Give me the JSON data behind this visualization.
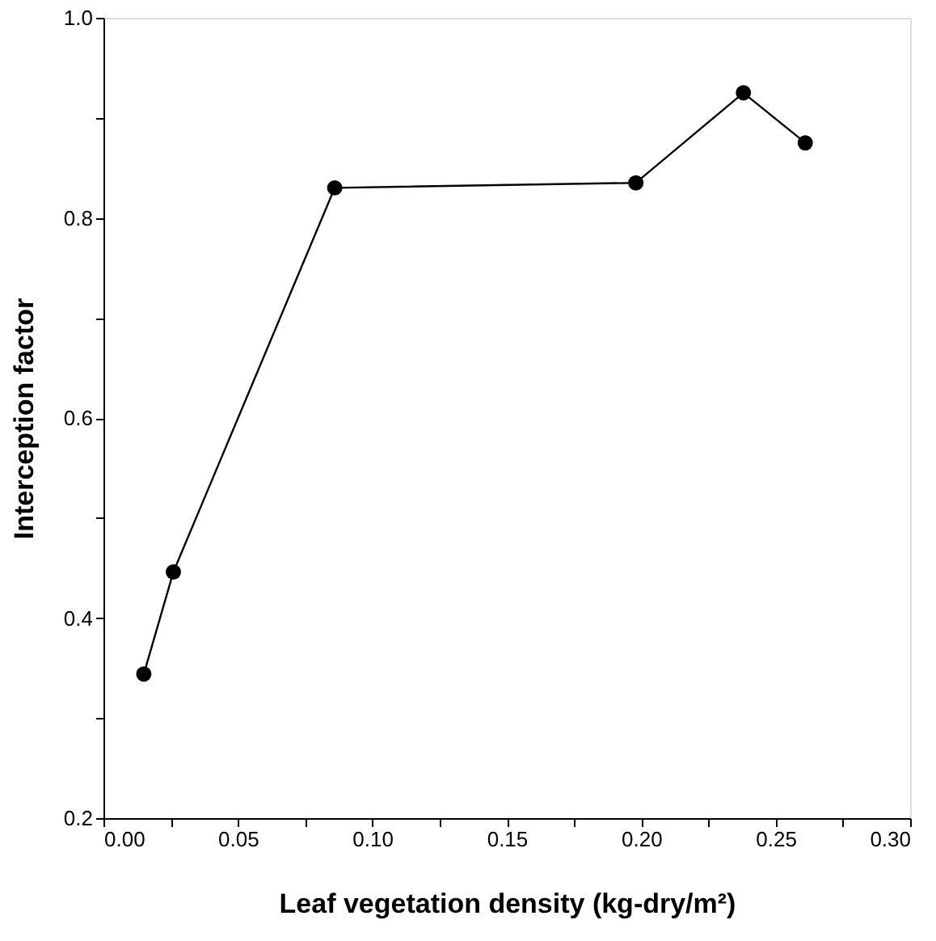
{
  "chart_data": {
    "type": "line",
    "xlabel": "Leaf vegetation density (kg-dry/m²)",
    "ylabel": "Interception factor",
    "x": [
      0.015,
      0.026,
      0.086,
      0.198,
      0.238,
      0.261
    ],
    "series": [
      {
        "color": "#000000",
        "values": [
          0.344,
          0.446,
          0.83,
          0.835,
          0.925,
          0.875
        ]
      }
    ],
    "xlim": [
      0.0,
      0.3
    ],
    "ylim": [
      0.2,
      1.0
    ],
    "xticks": [
      {
        "value": 0.0,
        "label": "0.00"
      },
      {
        "value": 0.025,
        "label": null
      },
      {
        "value": 0.05,
        "label": "0.05"
      },
      {
        "value": 0.075,
        "label": null
      },
      {
        "value": 0.1,
        "label": "0.10"
      },
      {
        "value": 0.125,
        "label": null
      },
      {
        "value": 0.15,
        "label": "0.15"
      },
      {
        "value": 0.175,
        "label": null
      },
      {
        "value": 0.2,
        "label": "0.20"
      },
      {
        "value": 0.225,
        "label": null
      },
      {
        "value": 0.25,
        "label": "0.25"
      },
      {
        "value": 0.275,
        "label": null
      },
      {
        "value": 0.3,
        "label": "0.30"
      }
    ],
    "yticks": [
      0.2,
      {
        "value": 0.3,
        "label": null
      },
      0.4,
      {
        "value": 0.5,
        "label": null
      },
      0.6,
      {
        "value": 0.7,
        "label": null
      },
      0.8,
      {
        "value": 0.9,
        "label": null
      },
      {
        "value": 1.0,
        "label": "1.0"
      }
    ],
    "marker": "circle",
    "line_style": "solid"
  }
}
